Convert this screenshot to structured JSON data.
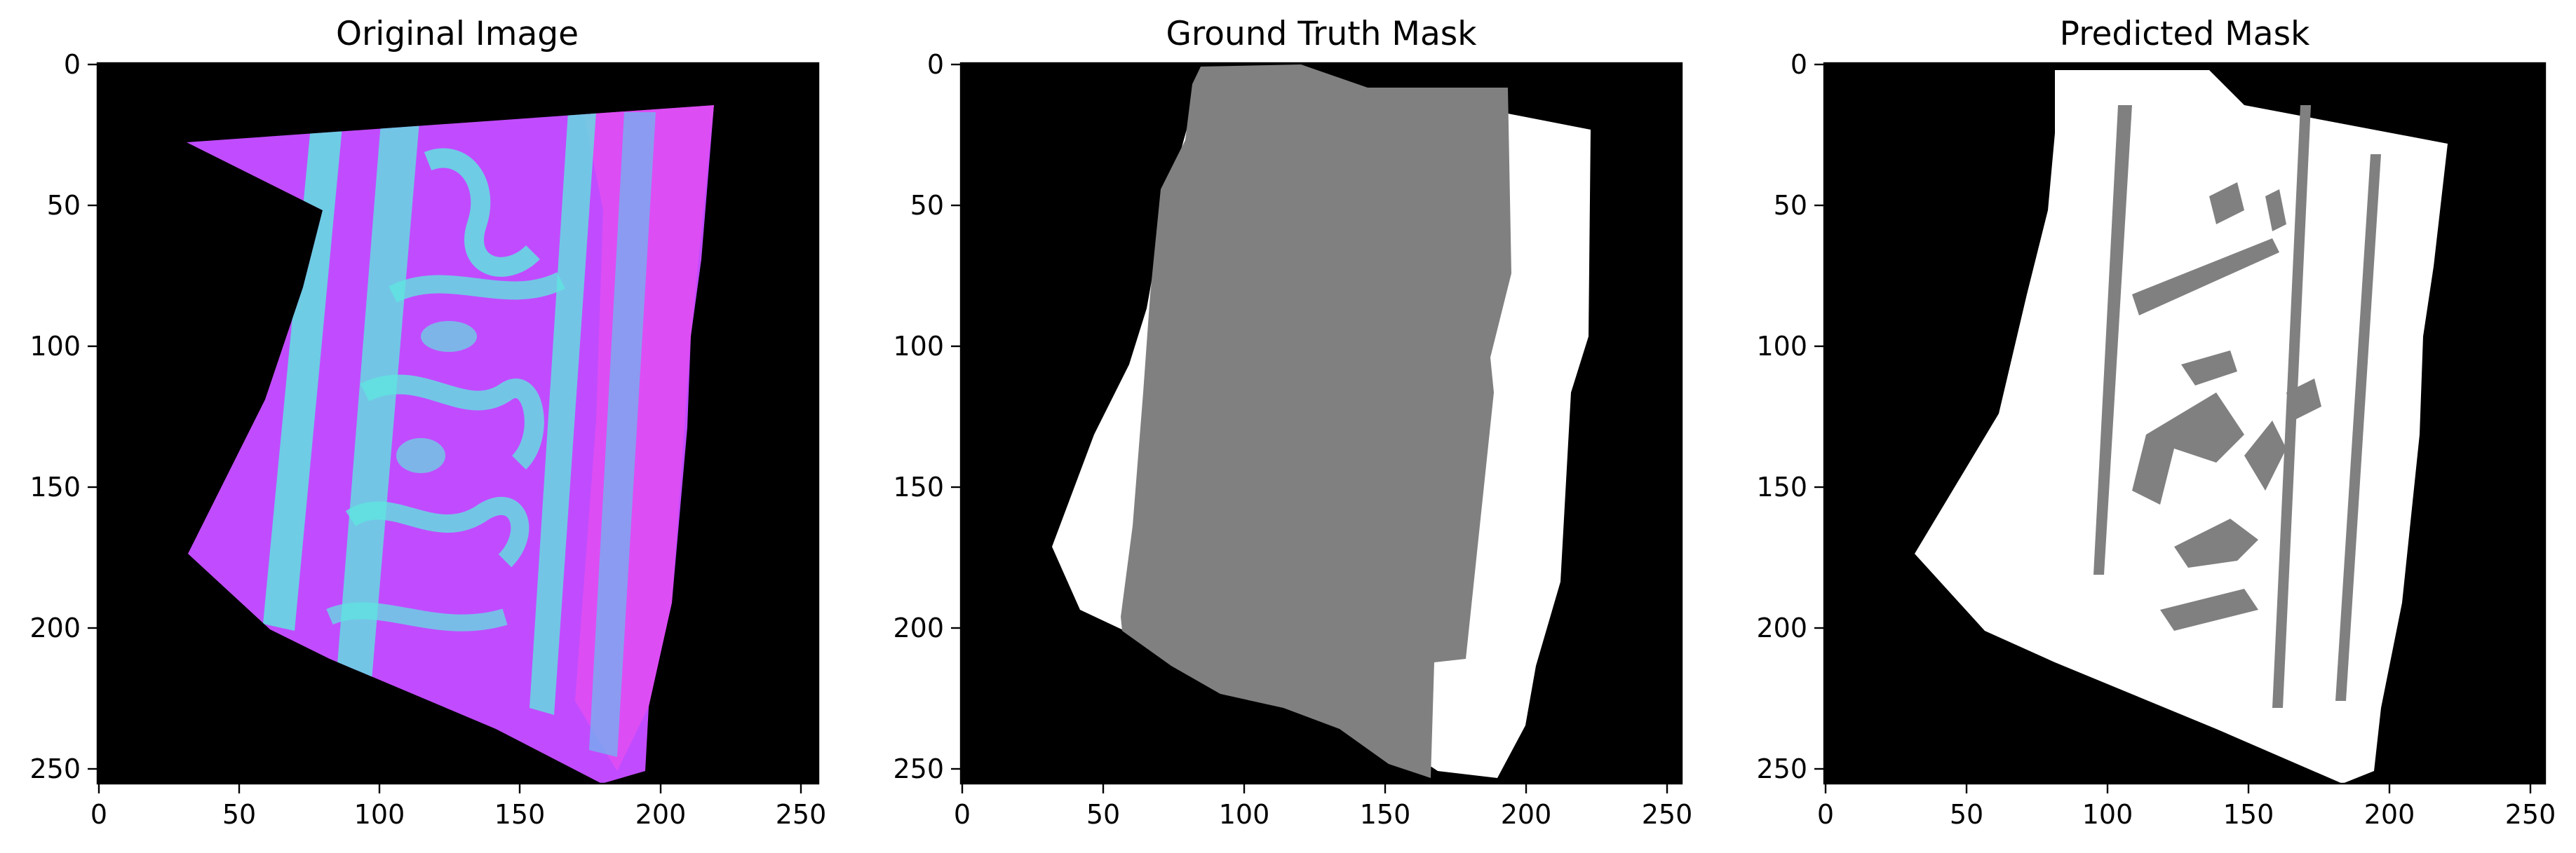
{
  "figure": {
    "panels": [
      {
        "id": "original",
        "title": "Original Image",
        "x_ticks": [
          "0",
          "50",
          "100",
          "150",
          "200",
          "250"
        ],
        "y_ticks": [
          "0",
          "50",
          "100",
          "150",
          "200",
          "250"
        ]
      },
      {
        "id": "ground-truth",
        "title": "Ground Truth Mask",
        "x_ticks": [
          "0",
          "50",
          "100",
          "150",
          "200",
          "250"
        ],
        "y_ticks": [
          "0",
          "50",
          "100",
          "150",
          "200",
          "250"
        ]
      },
      {
        "id": "predicted",
        "title": "Predicted Mask",
        "x_ticks": [
          "0",
          "50",
          "100",
          "150",
          "200",
          "250"
        ],
        "y_ticks": [
          "0",
          "50",
          "100",
          "150",
          "200",
          "250"
        ]
      }
    ],
    "axis_range": [
      0,
      256
    ],
    "tick_values": [
      0,
      50,
      100,
      150,
      200,
      250
    ],
    "colors": {
      "background": "#000000",
      "mask_white": "#ffffff",
      "mask_gray": "#808080",
      "magenta": "#c14cff",
      "cyan": "#5fe3e0",
      "pink": "#ff4fd8"
    }
  }
}
